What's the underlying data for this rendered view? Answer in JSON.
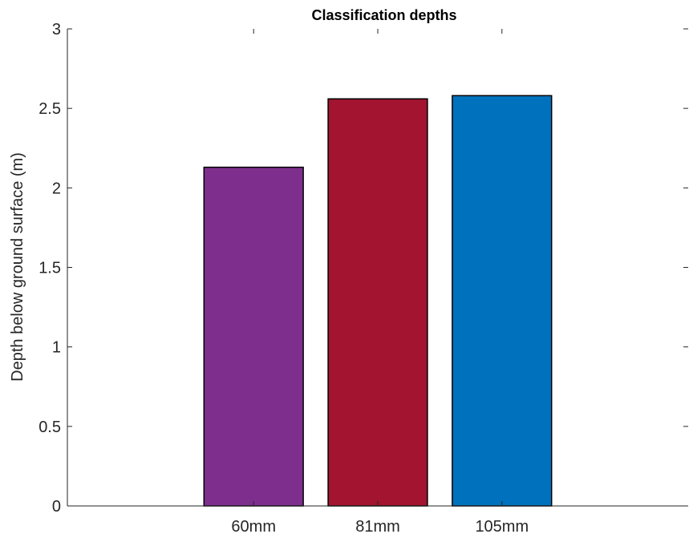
{
  "chart_data": {
    "type": "bar",
    "title": "Classification depths",
    "xlabel": "",
    "ylabel": "Depth below ground surface (m)",
    "categories": [
      "60mm",
      "81mm",
      "105mm"
    ],
    "values": [
      2.13,
      2.56,
      2.58
    ],
    "colors": [
      "#7E2F8E",
      "#A2142F",
      "#0072BD"
    ],
    "ylim": [
      0,
      3
    ],
    "yticks": [
      0,
      0.5,
      1,
      1.5,
      2,
      2.5,
      3
    ],
    "ytick_labels": [
      "0",
      "0.5",
      "1",
      "1.5",
      "2",
      "2.5",
      "3"
    ],
    "grid": false,
    "legend": "none"
  }
}
